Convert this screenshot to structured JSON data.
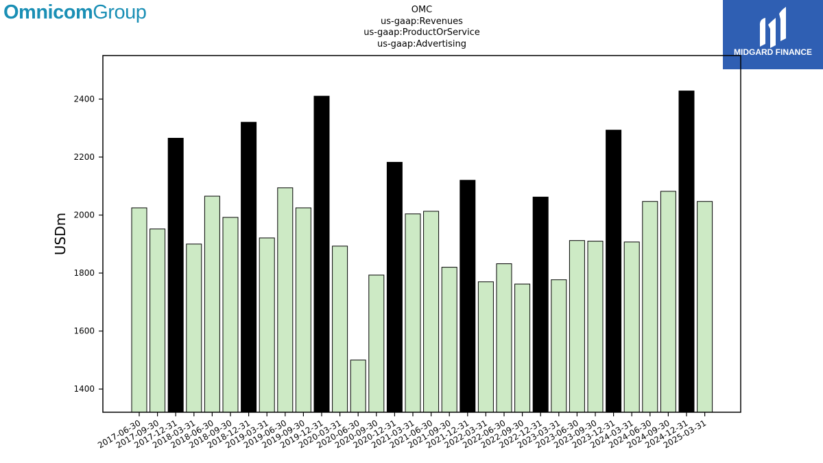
{
  "branding": {
    "left_logo_strong": "Omnicom",
    "left_logo_light": "Group",
    "left_logo_color": "#1a8fb5",
    "right_logo_name": "MIDGARD FINANCE",
    "right_logo_bg": "#2f5fb3"
  },
  "chart_data": {
    "type": "bar",
    "title": [
      "OMC",
      "us-gaap:Revenues",
      "us-gaap:ProductOrService",
      "us-gaap:Advertising"
    ],
    "xlabel": "",
    "ylabel": "USDm",
    "ylim": [
      1320,
      2550
    ],
    "yticks": [
      1400,
      1600,
      1800,
      2000,
      2200,
      2400
    ],
    "grid": false,
    "colors": {
      "quarter": "#cdeac5",
      "year_end": "#000000",
      "edge": "#000000"
    },
    "categories": [
      "2017-06-30",
      "2017-09-30",
      "2017-12-31",
      "2018-03-31",
      "2018-06-30",
      "2018-09-30",
      "2018-12-31",
      "2019-03-31",
      "2019-06-30",
      "2019-09-30",
      "2019-12-31",
      "2020-03-31",
      "2020-06-30",
      "2020-09-30",
      "2020-12-31",
      "2021-03-31",
      "2021-06-30",
      "2021-09-30",
      "2021-12-31",
      "2022-03-31",
      "2022-06-30",
      "2022-09-30",
      "2022-12-31",
      "2023-03-31",
      "2023-06-30",
      "2023-09-30",
      "2023-12-31",
      "2024-03-31",
      "2024-06-30",
      "2024-09-30",
      "2024-12-31",
      "2025-03-31"
    ],
    "values": [
      2025,
      1952,
      2265,
      1900,
      2065,
      1992,
      2320,
      1921,
      2094,
      2025,
      2410,
      1893,
      1500,
      1793,
      2182,
      2004,
      2013,
      1820,
      2120,
      1770,
      1832,
      1762,
      2062,
      1777,
      1912,
      1910,
      2293,
      1907,
      2047,
      2082,
      2428,
      2047
    ]
  }
}
